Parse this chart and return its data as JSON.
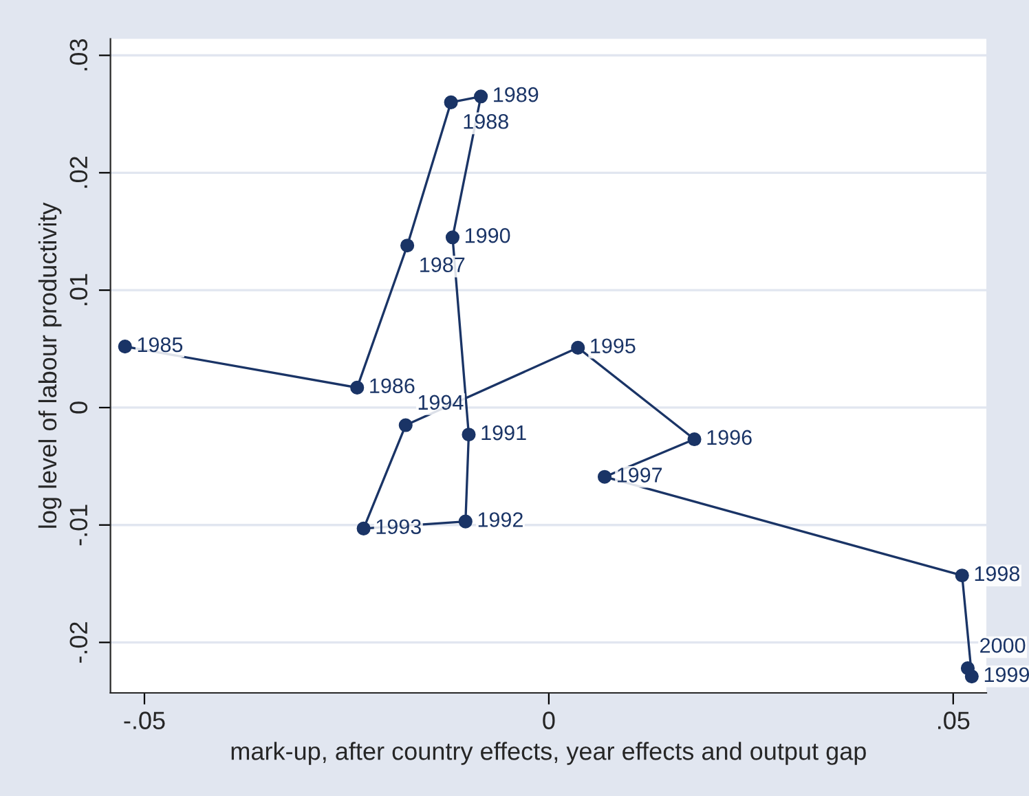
{
  "chart_data": {
    "type": "line",
    "xlabel": "mark-up, after country effects, year effects and output gap",
    "ylabel": "log level of labour productivity",
    "x": [
      -0.0524,
      -0.0237,
      -0.0175,
      -0.0121,
      -0.0084,
      -0.0119,
      -0.0099,
      -0.0103,
      -0.0229,
      -0.0177,
      0.0036,
      0.018,
      0.0069,
      0.0511,
      0.0523,
      0.0518
    ],
    "series": [
      {
        "color": "#1a3466",
        "values": [
          0.0052,
          0.0017,
          0.0138,
          0.026,
          0.0265,
          0.0145,
          -0.0023,
          -0.0097,
          -0.0103,
          -0.0015,
          0.0051,
          -0.0027,
          -0.0059,
          -0.0143,
          -0.0229,
          -0.0222
        ]
      }
    ],
    "marker": "circle",
    "line_style": "solid",
    "grid": "y",
    "legend": false,
    "xlim": [
      -0.0542,
      0.0541
    ],
    "ylim": [
      -0.0243,
      0.0314
    ],
    "xticks": [
      {
        "value": -0.05,
        "label": "-.05"
      },
      0,
      {
        "value": 0.05,
        "label": ".05"
      }
    ],
    "yticks": [
      {
        "value": -0.02,
        "label": "-.02"
      },
      {
        "value": -0.01,
        "label": "-.01"
      },
      0,
      {
        "value": 0.01,
        "label": ".01"
      },
      {
        "value": 0.02,
        "label": ".02"
      },
      {
        "value": 0.03,
        "label": ".03"
      }
    ],
    "annotations": [
      {
        "text": "1985",
        "x": -0.0524,
        "y": 0.0052
      },
      {
        "text": "1986",
        "x": -0.0237,
        "y": 0.0017
      },
      {
        "text": "1987",
        "x": -0.0175,
        "y": 0.0138
      },
      {
        "text": "1988",
        "x": -0.0121,
        "y": 0.026
      },
      {
        "text": "1989",
        "x": -0.0084,
        "y": 0.0265
      },
      {
        "text": "1990",
        "x": -0.0119,
        "y": 0.0145
      },
      {
        "text": "1991",
        "x": -0.0099,
        "y": -0.0023
      },
      {
        "text": "1992",
        "x": -0.0103,
        "y": -0.0097
      },
      {
        "text": "1993",
        "x": -0.0229,
        "y": -0.0103
      },
      {
        "text": "1994",
        "x": -0.0177,
        "y": -0.0015
      },
      {
        "text": "1995",
        "x": 0.0036,
        "y": 0.0051
      },
      {
        "text": "1996",
        "x": 0.018,
        "y": -0.0027
      },
      {
        "text": "1997",
        "x": 0.0069,
        "y": -0.0059
      },
      {
        "text": "1998",
        "x": 0.0511,
        "y": -0.0143
      },
      {
        "text": "1999",
        "x": 0.0523,
        "y": -0.0229
      },
      {
        "text": "2000",
        "x": 0.0518,
        "y": -0.0222
      }
    ]
  }
}
